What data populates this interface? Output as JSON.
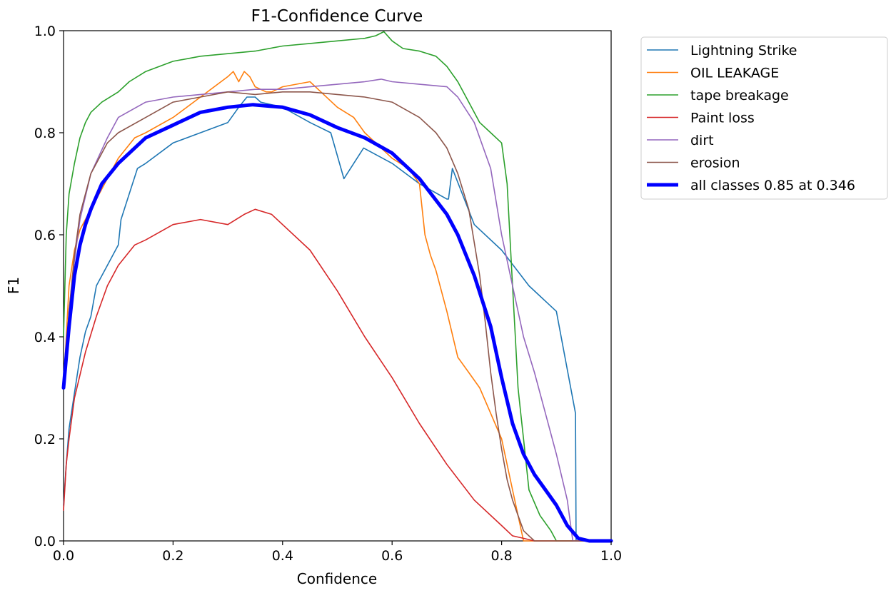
{
  "chart_data": {
    "type": "line",
    "title": "F1-Confidence Curve",
    "xlabel": "Confidence",
    "ylabel": "F1",
    "xlim": [
      0,
      1
    ],
    "ylim": [
      0,
      1
    ],
    "xticks": [
      "0.0",
      "0.2",
      "0.4",
      "0.6",
      "0.8",
      "1.0"
    ],
    "yticks": [
      "0.0",
      "0.2",
      "0.4",
      "0.6",
      "0.8",
      "1.0"
    ],
    "legend_position": "outside-top-right",
    "series": [
      {
        "name": "Lightning Strike",
        "color": "#1f77b4",
        "x": [
          0,
          0.005,
          0.01,
          0.02,
          0.03,
          0.04,
          0.05,
          0.06,
          0.08,
          0.1,
          0.105,
          0.12,
          0.135,
          0.15,
          0.2,
          0.25,
          0.3,
          0.32,
          0.335,
          0.35,
          0.36,
          0.4,
          0.45,
          0.488,
          0.512,
          0.53,
          0.548,
          0.6,
          0.65,
          0.7,
          0.703,
          0.71,
          0.75,
          0.8,
          0.85,
          0.9,
          0.935,
          0.936,
          1.0
        ],
        "y": [
          0.07,
          0.15,
          0.22,
          0.29,
          0.36,
          0.41,
          0.44,
          0.5,
          0.54,
          0.58,
          0.63,
          0.68,
          0.73,
          0.74,
          0.78,
          0.8,
          0.82,
          0.85,
          0.87,
          0.87,
          0.86,
          0.85,
          0.82,
          0.8,
          0.71,
          0.74,
          0.77,
          0.74,
          0.7,
          0.67,
          0.67,
          0.73,
          0.62,
          0.57,
          0.5,
          0.45,
          0.25,
          0.0,
          0.0
        ]
      },
      {
        "name": "OIL LEAKAGE",
        "color": "#ff7f0e",
        "x": [
          0,
          0.005,
          0.01,
          0.02,
          0.03,
          0.05,
          0.07,
          0.1,
          0.13,
          0.15,
          0.2,
          0.25,
          0.3,
          0.31,
          0.32,
          0.33,
          0.34,
          0.35,
          0.37,
          0.38,
          0.4,
          0.45,
          0.47,
          0.5,
          0.53,
          0.55,
          0.58,
          0.6,
          0.63,
          0.65,
          0.66,
          0.67,
          0.68,
          0.7,
          0.72,
          0.74,
          0.76,
          0.78,
          0.8,
          0.82,
          0.83,
          0.84,
          0.85,
          1.0
        ],
        "y": [
          0.3,
          0.4,
          0.5,
          0.57,
          0.61,
          0.65,
          0.69,
          0.75,
          0.79,
          0.8,
          0.83,
          0.87,
          0.91,
          0.92,
          0.9,
          0.92,
          0.91,
          0.89,
          0.88,
          0.88,
          0.89,
          0.9,
          0.88,
          0.85,
          0.83,
          0.8,
          0.77,
          0.75,
          0.73,
          0.7,
          0.6,
          0.56,
          0.53,
          0.45,
          0.36,
          0.33,
          0.3,
          0.25,
          0.2,
          0.1,
          0.05,
          0.0,
          0.0,
          0.0
        ]
      },
      {
        "name": "tape breakage",
        "color": "#2ca02c",
        "x": [
          0,
          0.005,
          0.01,
          0.015,
          0.02,
          0.03,
          0.04,
          0.05,
          0.07,
          0.1,
          0.12,
          0.15,
          0.2,
          0.25,
          0.3,
          0.35,
          0.4,
          0.45,
          0.5,
          0.55,
          0.57,
          0.585,
          0.6,
          0.62,
          0.65,
          0.68,
          0.7,
          0.72,
          0.74,
          0.76,
          0.78,
          0.8,
          0.81,
          0.815,
          0.82,
          0.825,
          0.83,
          0.835,
          0.84,
          0.85,
          0.87,
          0.89,
          0.9,
          1.0
        ],
        "y": [
          0.4,
          0.6,
          0.68,
          0.71,
          0.74,
          0.79,
          0.82,
          0.84,
          0.86,
          0.88,
          0.9,
          0.92,
          0.94,
          0.95,
          0.955,
          0.96,
          0.97,
          0.975,
          0.98,
          0.985,
          0.99,
          0.998,
          0.98,
          0.965,
          0.96,
          0.95,
          0.93,
          0.9,
          0.86,
          0.82,
          0.8,
          0.78,
          0.7,
          0.6,
          0.5,
          0.4,
          0.3,
          0.25,
          0.2,
          0.1,
          0.05,
          0.02,
          0.0,
          0.0
        ]
      },
      {
        "name": "Paint loss",
        "color": "#d62728",
        "x": [
          0,
          0.005,
          0.01,
          0.02,
          0.04,
          0.06,
          0.08,
          0.1,
          0.13,
          0.15,
          0.2,
          0.25,
          0.3,
          0.33,
          0.35,
          0.38,
          0.4,
          0.45,
          0.5,
          0.55,
          0.6,
          0.65,
          0.7,
          0.75,
          0.8,
          0.82,
          0.84,
          0.86,
          1.0
        ],
        "y": [
          0.06,
          0.15,
          0.2,
          0.28,
          0.37,
          0.44,
          0.5,
          0.54,
          0.58,
          0.59,
          0.62,
          0.63,
          0.62,
          0.64,
          0.65,
          0.64,
          0.62,
          0.57,
          0.49,
          0.4,
          0.32,
          0.23,
          0.15,
          0.08,
          0.03,
          0.01,
          0.005,
          0.0,
          0.0
        ]
      },
      {
        "name": "dirt",
        "color": "#9467bd",
        "x": [
          0,
          0.01,
          0.02,
          0.03,
          0.05,
          0.08,
          0.1,
          0.15,
          0.2,
          0.25,
          0.3,
          0.35,
          0.4,
          0.45,
          0.5,
          0.55,
          0.58,
          0.6,
          0.65,
          0.7,
          0.72,
          0.75,
          0.78,
          0.8,
          0.82,
          0.84,
          0.86,
          0.88,
          0.9,
          0.92,
          0.93,
          1.0
        ],
        "y": [
          0.3,
          0.45,
          0.55,
          0.63,
          0.72,
          0.79,
          0.83,
          0.86,
          0.87,
          0.875,
          0.88,
          0.885,
          0.885,
          0.89,
          0.895,
          0.9,
          0.905,
          0.9,
          0.895,
          0.89,
          0.87,
          0.82,
          0.73,
          0.6,
          0.5,
          0.4,
          0.33,
          0.25,
          0.17,
          0.08,
          0.0,
          0.0
        ]
      },
      {
        "name": "erosion",
        "color": "#8c564b",
        "x": [
          0,
          0.01,
          0.02,
          0.03,
          0.05,
          0.08,
          0.1,
          0.15,
          0.2,
          0.25,
          0.3,
          0.35,
          0.4,
          0.45,
          0.5,
          0.55,
          0.6,
          0.65,
          0.68,
          0.7,
          0.72,
          0.74,
          0.76,
          0.77,
          0.78,
          0.79,
          0.8,
          0.81,
          0.82,
          0.83,
          0.84,
          0.85,
          0.86,
          1.0
        ],
        "y": [
          0.3,
          0.45,
          0.56,
          0.64,
          0.72,
          0.78,
          0.8,
          0.83,
          0.86,
          0.87,
          0.88,
          0.875,
          0.88,
          0.88,
          0.875,
          0.87,
          0.86,
          0.83,
          0.8,
          0.77,
          0.72,
          0.65,
          0.52,
          0.43,
          0.33,
          0.25,
          0.18,
          0.12,
          0.08,
          0.05,
          0.02,
          0.01,
          0.0,
          0.0
        ]
      },
      {
        "name": "all classes 0.85 at 0.346",
        "color": "#0000ff",
        "bold": true,
        "x": [
          0,
          0.005,
          0.01,
          0.015,
          0.02,
          0.03,
          0.04,
          0.05,
          0.07,
          0.1,
          0.13,
          0.15,
          0.2,
          0.25,
          0.3,
          0.346,
          0.4,
          0.45,
          0.5,
          0.55,
          0.6,
          0.65,
          0.7,
          0.72,
          0.75,
          0.78,
          0.8,
          0.82,
          0.84,
          0.86,
          0.88,
          0.9,
          0.92,
          0.94,
          0.96,
          0.97,
          1.0
        ],
        "y": [
          0.3,
          0.36,
          0.42,
          0.47,
          0.52,
          0.58,
          0.62,
          0.65,
          0.7,
          0.74,
          0.77,
          0.79,
          0.815,
          0.84,
          0.85,
          0.855,
          0.85,
          0.835,
          0.81,
          0.79,
          0.76,
          0.71,
          0.64,
          0.6,
          0.52,
          0.42,
          0.32,
          0.23,
          0.17,
          0.13,
          0.1,
          0.07,
          0.03,
          0.005,
          0.0,
          0.0,
          0.0
        ]
      }
    ]
  }
}
